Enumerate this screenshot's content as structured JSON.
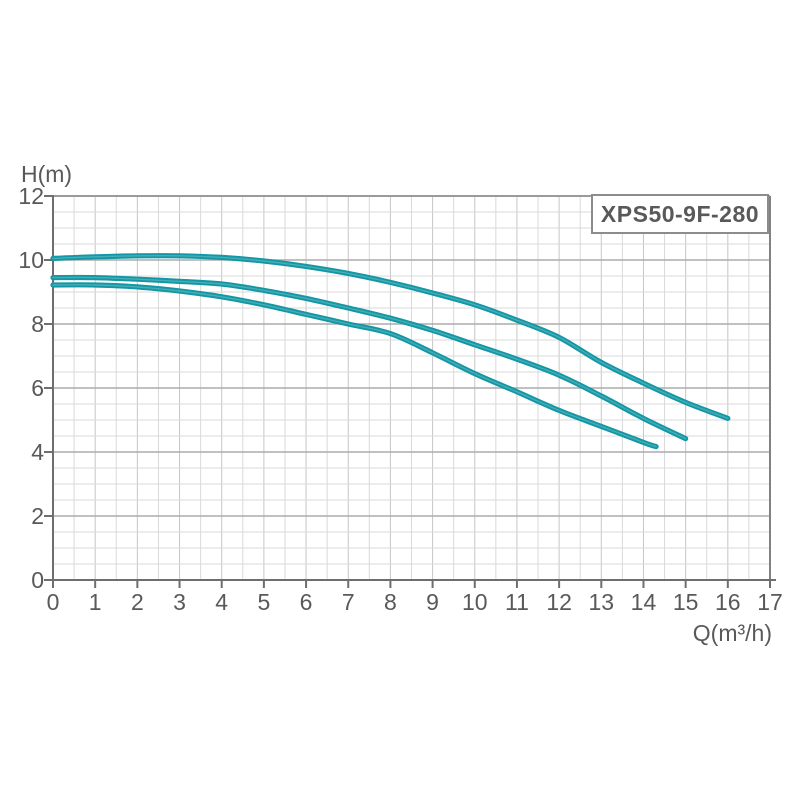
{
  "chart_data": {
    "type": "line",
    "title_box": "XPS50-9F-280",
    "xlabel": "Q(m³/h)",
    "ylabel": "H(m)",
    "xlim": [
      0,
      17
    ],
    "ylim": [
      0,
      12
    ],
    "xticks": [
      0,
      1,
      2,
      3,
      4,
      5,
      6,
      7,
      8,
      9,
      10,
      11,
      12,
      13,
      14,
      15,
      16,
      17
    ],
    "yticks": [
      0,
      2,
      4,
      6,
      8,
      10,
      12
    ],
    "x_minor_step": 0.5,
    "y_minor_step": 0.5,
    "grid": true,
    "legend": "none",
    "series": [
      {
        "name": "curve-top",
        "points": [
          [
            0,
            10.05
          ],
          [
            1,
            10.1
          ],
          [
            2,
            10.13
          ],
          [
            3,
            10.13
          ],
          [
            4,
            10.08
          ],
          [
            5,
            9.97
          ],
          [
            6,
            9.8
          ],
          [
            7,
            9.58
          ],
          [
            8,
            9.3
          ],
          [
            9,
            8.97
          ],
          [
            10,
            8.6
          ],
          [
            11,
            8.12
          ],
          [
            12,
            7.58
          ],
          [
            13,
            6.8
          ],
          [
            14,
            6.15
          ],
          [
            15,
            5.55
          ],
          [
            16,
            5.05
          ]
        ]
      },
      {
        "name": "curve-middle",
        "points": [
          [
            0,
            9.45
          ],
          [
            1,
            9.45
          ],
          [
            2,
            9.4
          ],
          [
            3,
            9.33
          ],
          [
            4,
            9.25
          ],
          [
            5,
            9.05
          ],
          [
            6,
            8.8
          ],
          [
            7,
            8.5
          ],
          [
            8,
            8.18
          ],
          [
            9,
            7.8
          ],
          [
            10,
            7.35
          ],
          [
            11,
            6.9
          ],
          [
            12,
            6.4
          ],
          [
            13,
            5.75
          ],
          [
            14,
            5.05
          ],
          [
            15,
            4.42
          ]
        ]
      },
      {
        "name": "curve-bottom",
        "points": [
          [
            0,
            9.22
          ],
          [
            1,
            9.22
          ],
          [
            2,
            9.16
          ],
          [
            3,
            9.03
          ],
          [
            4,
            8.85
          ],
          [
            5,
            8.6
          ],
          [
            6,
            8.3
          ],
          [
            7,
            8.0
          ],
          [
            8,
            7.7
          ],
          [
            9,
            7.1
          ],
          [
            10,
            6.45
          ],
          [
            11,
            5.88
          ],
          [
            12,
            5.3
          ],
          [
            13,
            4.8
          ],
          [
            14,
            4.3
          ],
          [
            14.3,
            4.17
          ]
        ]
      }
    ],
    "colors": {
      "curve": "#1397A4",
      "curve_sheen": "rgba(255,255,255,0.22)",
      "text": "#595959",
      "grid_minor": "#d9d9d9",
      "grid_major_h": "#ababab",
      "grid_v_integer": "#c6c6c6",
      "frame_top": "#9a9a9a",
      "frame_right": "#828282",
      "axis": "#6e6e6e"
    }
  }
}
